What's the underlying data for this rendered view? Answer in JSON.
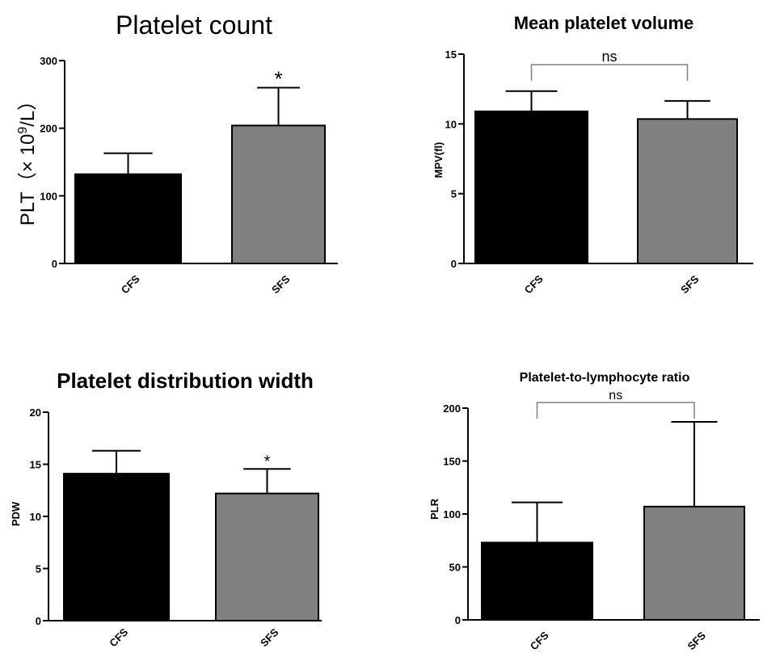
{
  "chart_data": [
    {
      "type": "bar",
      "title": "Platelet count",
      "xlabel": "",
      "ylabel": "PLT（× 10",
      "ylabel_sup": "9",
      "ylabel_suffix": "/L）",
      "categories": [
        "CFS",
        "SFS"
      ],
      "values": [
        132,
        204
      ],
      "error_upper": [
        163,
        260
      ],
      "ylim": [
        0,
        300
      ],
      "yticks": [
        0,
        100,
        200,
        300
      ],
      "colors": [
        "#000000",
        "#808080"
      ],
      "annotations": [
        {
          "text": "*",
          "category": "SFS"
        }
      ]
    },
    {
      "type": "bar",
      "title": "Mean platelet volume",
      "xlabel": "",
      "ylabel": "MPV(fl)",
      "categories": [
        "CFS",
        "SFS"
      ],
      "values": [
        10.9,
        10.35
      ],
      "error_upper": [
        12.35,
        11.65
      ],
      "ylim": [
        0,
        15
      ],
      "yticks": [
        0,
        5,
        10,
        15
      ],
      "colors": [
        "#000000",
        "#808080"
      ],
      "significance": {
        "text": "ns",
        "between": [
          "CFS",
          "SFS"
        ]
      }
    },
    {
      "type": "bar",
      "title": "Platelet distribution width",
      "xlabel": "",
      "ylabel": "PDW",
      "categories": [
        "CFS",
        "SFS"
      ],
      "values": [
        14.1,
        12.2
      ],
      "error_upper": [
        16.3,
        14.55
      ],
      "ylim": [
        0,
        20
      ],
      "yticks": [
        0,
        5,
        10,
        15,
        20
      ],
      "colors": [
        "#000000",
        "#808080"
      ],
      "annotations": [
        {
          "text": "*",
          "category": "SFS"
        }
      ]
    },
    {
      "type": "bar",
      "title": "Platelet-to-lymphocyte ratio",
      "xlabel": "",
      "ylabel": "PLR",
      "categories": [
        "CFS",
        "SFS"
      ],
      "values": [
        73,
        107
      ],
      "error_upper": [
        111,
        187
      ],
      "ylim": [
        0,
        200
      ],
      "yticks": [
        0,
        50,
        100,
        150,
        200
      ],
      "colors": [
        "#000000",
        "#808080"
      ],
      "significance": {
        "text": "ns",
        "between": [
          "CFS",
          "SFS"
        ]
      }
    }
  ]
}
